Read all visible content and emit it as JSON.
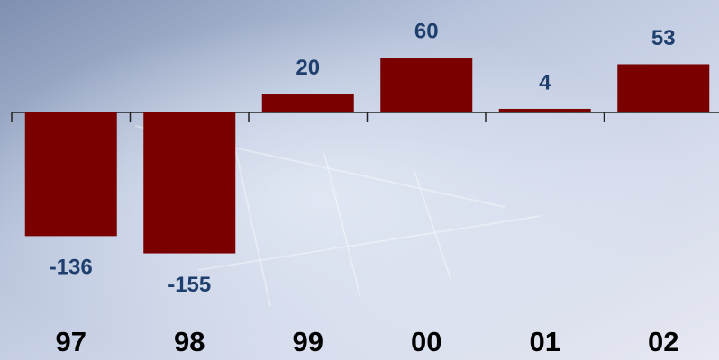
{
  "chart_data": {
    "type": "bar",
    "categories": [
      "97",
      "98",
      "99",
      "00",
      "01",
      "02"
    ],
    "values": [
      -136,
      -155,
      20,
      60,
      4,
      53
    ],
    "color": "#7a0000"
  }
}
